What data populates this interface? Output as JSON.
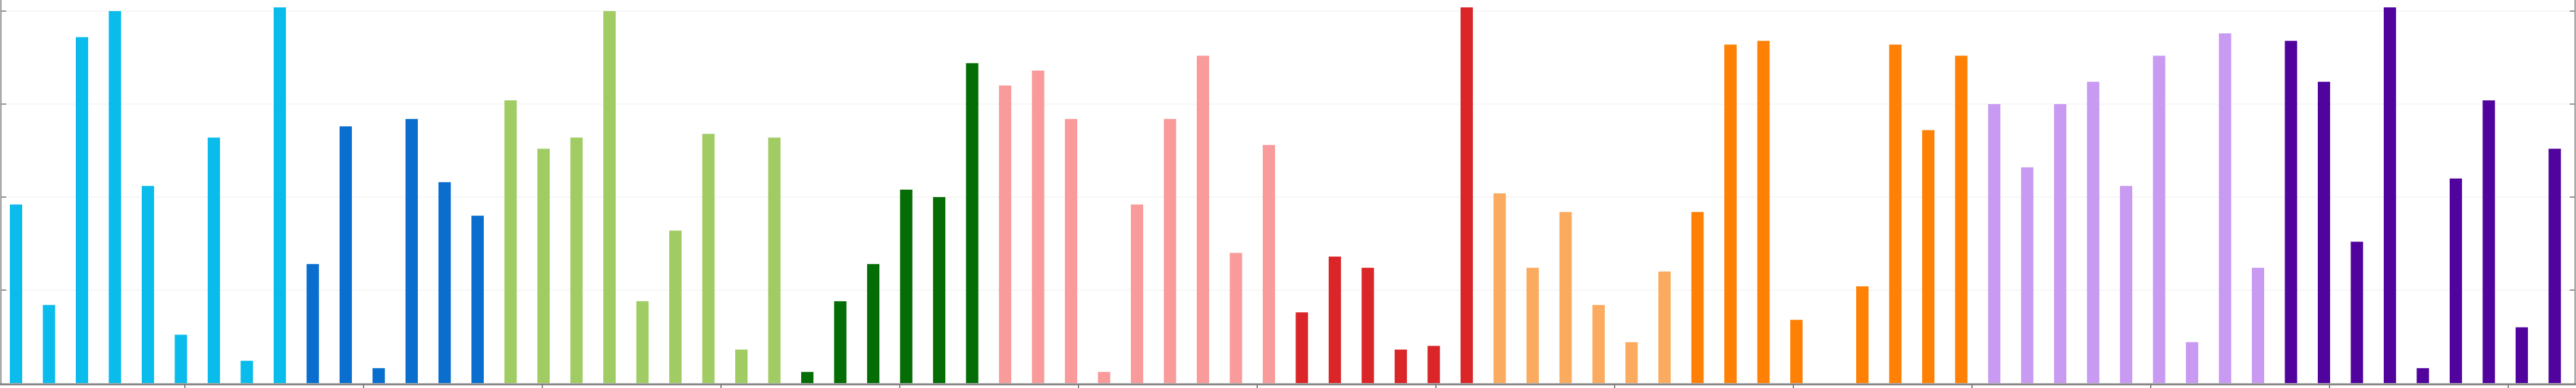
{
  "chart_data": {
    "type": "bar",
    "title": "",
    "xlabel": "",
    "ylabel": "",
    "ylim": [
      0,
      100
    ],
    "grid": true,
    "values": [
      {
        "v": 48,
        "color": "#09BCEB"
      },
      {
        "v": 21,
        "color": "#09BCEB"
      },
      {
        "v": 93,
        "color": "#09BCEB"
      },
      {
        "v": 100,
        "color": "#09BCEB"
      },
      {
        "v": 53,
        "color": "#09BCEB"
      },
      {
        "v": 13,
        "color": "#09BCEB"
      },
      {
        "v": 66,
        "color": "#09BCEB"
      },
      {
        "v": 6,
        "color": "#09BCEB"
      },
      {
        "v": 101,
        "color": "#09BCEB"
      },
      {
        "v": 32,
        "color": "#0A6ECE"
      },
      {
        "v": 69,
        "color": "#0A6ECE"
      },
      {
        "v": 4,
        "color": "#0A6ECE"
      },
      {
        "v": 71,
        "color": "#0A6ECE"
      },
      {
        "v": 54,
        "color": "#0A6ECE"
      },
      {
        "v": 45,
        "color": "#0A6ECE"
      },
      {
        "v": 76,
        "color": "#A0CC63"
      },
      {
        "v": 63,
        "color": "#A0CC63"
      },
      {
        "v": 66,
        "color": "#A0CC63"
      },
      {
        "v": 100,
        "color": "#A0CC63"
      },
      {
        "v": 22,
        "color": "#A0CC63"
      },
      {
        "v": 41,
        "color": "#A0CC63"
      },
      {
        "v": 67,
        "color": "#A0CC63"
      },
      {
        "v": 9,
        "color": "#A0CC63"
      },
      {
        "v": 66,
        "color": "#A0CC63"
      },
      {
        "v": 3,
        "color": "#056D06"
      },
      {
        "v": 22,
        "color": "#056D06"
      },
      {
        "v": 32,
        "color": "#056D06"
      },
      {
        "v": 52,
        "color": "#056D06"
      },
      {
        "v": 50,
        "color": "#056D06"
      },
      {
        "v": 86,
        "color": "#056D06"
      },
      {
        "v": 80,
        "color": "#F89B9A"
      },
      {
        "v": 84,
        "color": "#F89B9A"
      },
      {
        "v": 71,
        "color": "#F89B9A"
      },
      {
        "v": 3,
        "color": "#F89B9A"
      },
      {
        "v": 48,
        "color": "#F89B9A"
      },
      {
        "v": 71,
        "color": "#F89B9A"
      },
      {
        "v": 88,
        "color": "#F89B9A"
      },
      {
        "v": 35,
        "color": "#F89B9A"
      },
      {
        "v": 64,
        "color": "#F89B9A"
      },
      {
        "v": 19,
        "color": "#DB2629"
      },
      {
        "v": 34,
        "color": "#DB2629"
      },
      {
        "v": 31,
        "color": "#DB2629"
      },
      {
        "v": 9,
        "color": "#DB2629"
      },
      {
        "v": 10,
        "color": "#DB2629"
      },
      {
        "v": 101,
        "color": "#DB2629"
      },
      {
        "v": 51,
        "color": "#FBAB60"
      },
      {
        "v": 31,
        "color": "#FBAB60"
      },
      {
        "v": 46,
        "color": "#FBAB60"
      },
      {
        "v": 21,
        "color": "#FBAB60"
      },
      {
        "v": 11,
        "color": "#FBAB60"
      },
      {
        "v": 30,
        "color": "#FBAB60"
      },
      {
        "v": 46,
        "color": "#FE8004"
      },
      {
        "v": 91,
        "color": "#FE8004"
      },
      {
        "v": 92,
        "color": "#FE8004"
      },
      {
        "v": 17,
        "color": "#FE8004"
      },
      {
        "v": 0,
        "color": "#FE8004"
      },
      {
        "v": 26,
        "color": "#FE8004"
      },
      {
        "v": 91,
        "color": "#FE8004"
      },
      {
        "v": 68,
        "color": "#FE8004"
      },
      {
        "v": 88,
        "color": "#FE8004"
      },
      {
        "v": 75,
        "color": "#C89AF2"
      },
      {
        "v": 58,
        "color": "#C89AF2"
      },
      {
        "v": 75,
        "color": "#C89AF2"
      },
      {
        "v": 81,
        "color": "#C89AF2"
      },
      {
        "v": 53,
        "color": "#C89AF2"
      },
      {
        "v": 88,
        "color": "#C89AF2"
      },
      {
        "v": 11,
        "color": "#C89AF2"
      },
      {
        "v": 94,
        "color": "#C89AF2"
      },
      {
        "v": 31,
        "color": "#C89AF2"
      },
      {
        "v": 92,
        "color": "#51049D"
      },
      {
        "v": 81,
        "color": "#51049D"
      },
      {
        "v": 38,
        "color": "#51049D"
      },
      {
        "v": 101,
        "color": "#51049D"
      },
      {
        "v": 4,
        "color": "#51049D"
      },
      {
        "v": 55,
        "color": "#51049D"
      },
      {
        "v": 76,
        "color": "#51049D"
      },
      {
        "v": 15,
        "color": "#51049D"
      },
      {
        "v": 63,
        "color": "#51049D"
      }
    ]
  }
}
